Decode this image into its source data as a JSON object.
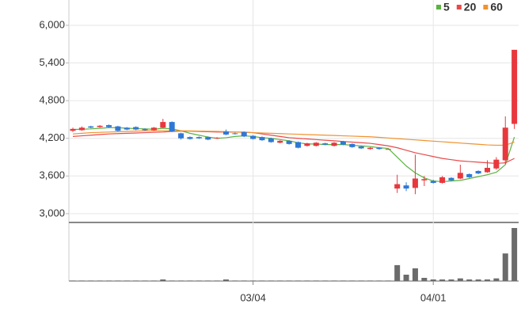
{
  "chart_data": {
    "type": "candlestick",
    "categories": [
      null,
      null,
      null,
      null,
      null,
      null,
      null,
      null,
      null,
      null,
      null,
      null,
      null,
      null,
      null,
      null,
      null,
      null,
      null,
      null,
      "03/04",
      null,
      null,
      null,
      null,
      null,
      null,
      null,
      null,
      null,
      null,
      null,
      null,
      null,
      null,
      null,
      null,
      null,
      null,
      null,
      "04/01",
      null,
      null,
      null,
      null,
      null,
      null,
      null,
      null,
      null
    ],
    "ohlc": {
      "open": [
        4320,
        4330,
        4390,
        4380,
        4410,
        4390,
        4370,
        4380,
        4350,
        4330,
        4370,
        4460,
        4280,
        4220,
        4220,
        4220,
        4200,
        4310,
        4280,
        4300,
        4240,
        4220,
        4200,
        4130,
        4160,
        4140,
        4080,
        4080,
        4120,
        4080,
        4150,
        4110,
        4070,
        4030,
        4050,
        4030,
        3400,
        3450,
        3410,
        3530,
        3520,
        3490,
        3570,
        3560,
        3630,
        3680,
        3660,
        3720,
        3850,
        4430
      ],
      "high": [
        4370,
        4390,
        4400,
        4410,
        4420,
        4400,
        4380,
        4390,
        4360,
        4380,
        4510,
        4470,
        4290,
        4230,
        4230,
        4230,
        4220,
        4340,
        4290,
        4310,
        4250,
        4230,
        4210,
        4170,
        4170,
        4150,
        4130,
        4140,
        4130,
        4140,
        4160,
        4120,
        4080,
        4060,
        4060,
        4030,
        3620,
        3500,
        3940,
        3600,
        3540,
        3600,
        3580,
        3780,
        3640,
        3690,
        3850,
        3900,
        4550,
        5610
      ],
      "low": [
        4300,
        4320,
        4360,
        4370,
        4370,
        4310,
        4330,
        4330,
        4320,
        4320,
        4360,
        4300,
        4180,
        4180,
        4190,
        4170,
        4190,
        4250,
        4260,
        4220,
        4180,
        4160,
        4130,
        4120,
        4100,
        4040,
        4070,
        4070,
        4090,
        4070,
        4090,
        4050,
        4030,
        4020,
        4020,
        4030,
        3330,
        3360,
        3310,
        3440,
        3480,
        3480,
        3520,
        3550,
        3570,
        3630,
        3650,
        3700,
        3790,
        4350
      ],
      "close": [
        4350,
        4370,
        4370,
        4400,
        4380,
        4320,
        4340,
        4340,
        4330,
        4370,
        4460,
        4310,
        4200,
        4190,
        4200,
        4180,
        4210,
        4260,
        4270,
        4230,
        4190,
        4170,
        4140,
        4160,
        4110,
        4050,
        4120,
        4130,
        4100,
        4130,
        4100,
        4060,
        4040,
        4050,
        4030,
        4030,
        3470,
        3400,
        3560,
        3550,
        3490,
        3580,
        3530,
        3650,
        3580,
        3640,
        3730,
        3860,
        4370,
        5610
      ],
      "up_color": "#e8383d",
      "down_color": "#2f78d6"
    },
    "ma": [
      {
        "name": "5",
        "color": "#5ab341",
        "values": [
          4340,
          4345,
          4350,
          4360,
          4370,
          4370,
          4360,
          4355,
          4350,
          4345,
          4360,
          4350,
          4320,
          4280,
          4250,
          4220,
          4200,
          4210,
          4230,
          4240,
          4230,
          4210,
          4200,
          4180,
          4160,
          4130,
          4110,
          4110,
          4100,
          4100,
          4100,
          4090,
          4080,
          4070,
          4050,
          4040,
          3900,
          3760,
          3650,
          3570,
          3520,
          3510,
          3520,
          3530,
          3560,
          3590,
          3620,
          3660,
          3780,
          4220
        ]
      },
      {
        "name": "20",
        "color": "#e84a4a",
        "values": [
          4230,
          4240,
          4250,
          4260,
          4270,
          4275,
          4280,
          4285,
          4290,
          4295,
          4300,
          4310,
          4315,
          4315,
          4310,
          4305,
          4300,
          4300,
          4300,
          4300,
          4290,
          4270,
          4250,
          4230,
          4210,
          4200,
          4190,
          4180,
          4170,
          4160,
          4150,
          4140,
          4130,
          4120,
          4100,
          4080,
          4050,
          4010,
          3970,
          3940,
          3910,
          3880,
          3860,
          3840,
          3830,
          3820,
          3810,
          3800,
          3810,
          3880
        ]
      },
      {
        "name": "60",
        "color": "#f0922f",
        "values": [
          4270,
          4280,
          4290,
          4295,
          4300,
          4305,
          4310,
          4315,
          4318,
          4320,
          4320,
          4320,
          4320,
          4318,
          4315,
          4312,
          4310,
          4305,
          4300,
          4295,
          4290,
          4285,
          4280,
          4275,
          4270,
          4265,
          4260,
          4255,
          4250,
          4245,
          4240,
          4235,
          4230,
          4225,
          4215,
          4205,
          4195,
          4185,
          4175,
          4165,
          4155,
          4145,
          4135,
          4125,
          4115,
          4105,
          4095,
          4090,
          4090,
          4140
        ]
      }
    ],
    "volume": {
      "color": "#6b6b6b",
      "values": [
        1,
        1,
        1,
        1,
        1,
        1,
        1,
        1,
        1,
        1,
        3,
        1,
        1,
        1,
        1,
        1,
        1,
        3,
        1,
        1,
        1,
        1,
        1,
        1,
        1,
        1,
        1,
        1,
        1,
        1,
        1,
        1,
        1,
        1,
        1,
        1,
        30,
        12,
        24,
        6,
        3,
        3,
        3,
        5,
        3,
        3,
        3,
        5,
        52,
        100
      ]
    },
    "ylim": [
      2860,
      6277
    ],
    "yticks": [
      {
        "value": 3000,
        "label": "3,000"
      },
      {
        "value": 3600,
        "label": "3,600"
      },
      {
        "value": 4200,
        "label": "4,200"
      },
      {
        "value": 4800,
        "label": "4,800"
      },
      {
        "value": 5400,
        "label": "5,400"
      },
      {
        "value": 6000,
        "label": "6,000"
      }
    ],
    "grid": true
  }
}
